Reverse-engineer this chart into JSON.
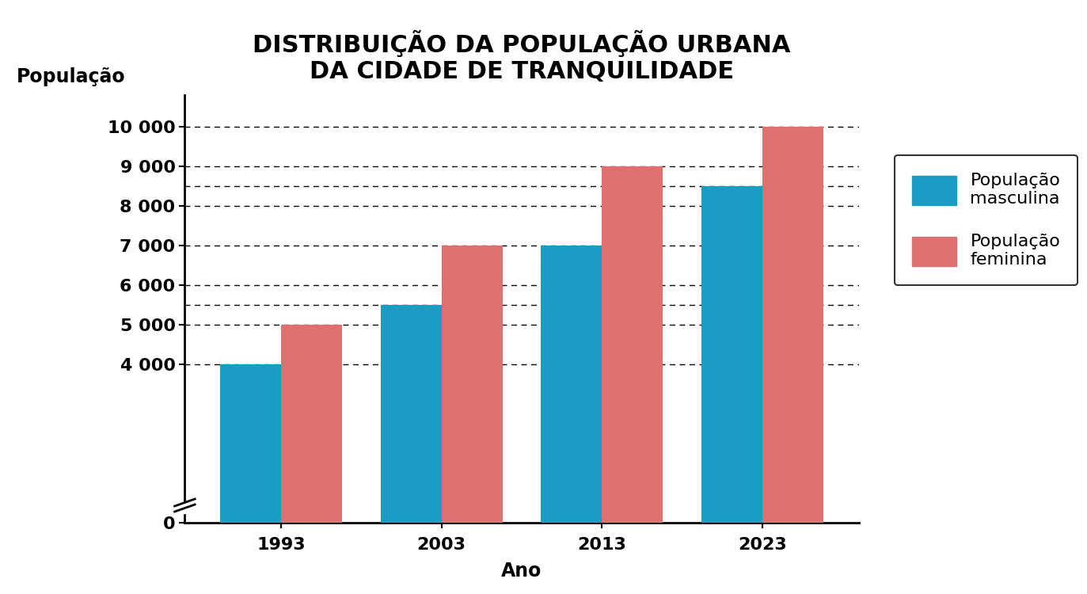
{
  "title": "DISTRIBUIÇÃO DA POPULAÇÃO URBANA\nDA CIDADE DE TRANQUILIDADE",
  "xlabel": "Ano",
  "ylabel": "População",
  "years": [
    "1993",
    "2003",
    "2013",
    "2023"
  ],
  "masc": [
    4000,
    5500,
    7000,
    8500
  ],
  "fem": [
    5000,
    7000,
    9000,
    10000
  ],
  "masc_color": "#1A9DC4",
  "fem_color": "#E07070",
  "bar_width": 0.38,
  "yticks": [
    0,
    4000,
    5000,
    6000,
    7000,
    8000,
    9000,
    10000
  ],
  "ytick_labels": [
    "0",
    "4 000",
    "5 000",
    "6 000",
    "7 000",
    "8 000",
    "9 000",
    "10 000"
  ],
  "extra_gridlines": [
    5500,
    8500
  ],
  "ylim": [
    0,
    10800
  ],
  "legend_masc": "População\nmasculina",
  "legend_fem": "População\nfeminina",
  "title_fontsize": 22,
  "axis_label_fontsize": 17,
  "tick_fontsize": 16,
  "legend_fontsize": 16,
  "background_color": "#FFFFFF"
}
